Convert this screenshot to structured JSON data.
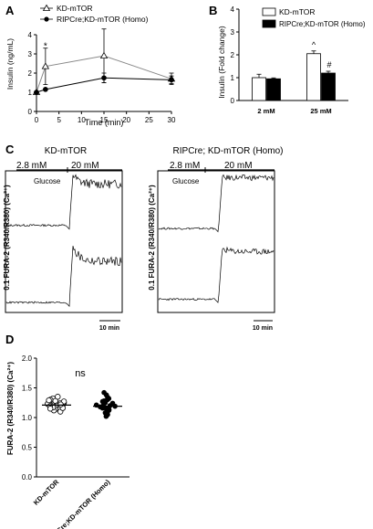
{
  "panels": {
    "A": "A",
    "B": "B",
    "C": "C",
    "D": "D"
  },
  "chart_data": [
    {
      "panel": "A",
      "type": "line",
      "xlabel": "Time (min)",
      "ylabel": "Insulin (ng/mL)",
      "xlim": [
        0,
        30
      ],
      "ylim": [
        0,
        4
      ],
      "xticks": [
        "0",
        "5",
        "10",
        "15",
        "20",
        "25",
        "30"
      ],
      "yticks": [
        "0",
        "1",
        "2",
        "3",
        "4"
      ],
      "series": [
        {
          "name": "KD-mTOR",
          "marker": "open-triangle",
          "x": [
            0,
            2,
            15,
            30
          ],
          "y": [
            1.0,
            2.35,
            2.9,
            1.7
          ],
          "err": [
            0.05,
            0.95,
            1.4,
            0.3
          ]
        },
        {
          "name": "RIPCre;KD-mTOR (Homo)",
          "marker": "filled-circle",
          "x": [
            0,
            2,
            15,
            30
          ],
          "y": [
            1.0,
            1.15,
            1.75,
            1.65
          ],
          "err": [
            0.05,
            0.05,
            0.25,
            0.2
          ]
        }
      ],
      "annotations": [
        {
          "x": 2,
          "y": 3.45,
          "text": "*"
        }
      ]
    },
    {
      "panel": "B",
      "type": "bar",
      "ylabel": "Insulin (Fold change)",
      "categories": [
        "2 mM",
        "25 mM"
      ],
      "ylim": [
        0,
        4
      ],
      "yticks": [
        "0",
        "1",
        "2",
        "3",
        "4"
      ],
      "series": [
        {
          "name": "KD-mTOR",
          "values": [
            1.0,
            2.05
          ],
          "err": [
            0.15,
            0.12
          ],
          "fill": "#ffffff"
        },
        {
          "name": "RIPCre;KD-mTOR (Homo)",
          "values": [
            0.95,
            1.2
          ],
          "err": [
            0.04,
            0.08
          ],
          "fill": "#000000"
        }
      ],
      "annotations": [
        {
          "category": "25 mM",
          "series": "KD-mTOR",
          "text": "^"
        },
        {
          "category": "25 mM",
          "series": "RIPCre;KD-mTOR (Homo)",
          "text": "#"
        }
      ]
    },
    {
      "panel": "C",
      "type": "line",
      "ylabel": "0.1 FURA-2 (R340/R380) (Ca²⁺)",
      "scalebar": "10 min",
      "stimulus_label": "Glucose",
      "conditions": [
        "2.8 mM",
        "20 mM"
      ],
      "traces": [
        {
          "group": "KD-mTOR",
          "trace": 1,
          "baseline": 0.2,
          "peak": 1.0,
          "plateau": 0.85,
          "switch_fraction": 0.43
        },
        {
          "group": "KD-mTOR",
          "trace": 2,
          "baseline": 0.1,
          "peak": 1.0,
          "plateau": 0.75,
          "switch_fraction": 0.43
        },
        {
          "group": "RIPCre; KD-mTOR (Homo)",
          "trace": 1,
          "baseline": 0.15,
          "peak": 0.95,
          "plateau": 0.95,
          "switch_fraction": 0.38
        },
        {
          "group": "RIPCre; KD-mTOR (Homo)",
          "trace": 2,
          "baseline": 0.15,
          "peak": 0.95,
          "plateau": 0.9,
          "switch_fraction": 0.38
        }
      ]
    },
    {
      "panel": "D",
      "type": "scatter",
      "ylabel": "FURA-2 (R340/R380) (Ca²⁺)",
      "categories": [
        "KD-mTOR",
        "RIP-Cre;KD-mTOR (Homo)"
      ],
      "ylim": [
        0,
        2.0
      ],
      "yticks": [
        "0.0",
        "0.5",
        "1.0",
        "1.5",
        "2.0"
      ],
      "annotation": "ns",
      "series": [
        {
          "name": "KD-mTOR",
          "marker": "open-circle",
          "values": [
            1.32,
            1.28,
            1.35,
            1.24,
            1.22,
            1.2,
            1.18,
            1.26,
            1.14,
            1.12,
            1.25,
            1.3,
            1.1,
            1.21,
            1.17,
            1.23,
            1.19,
            1.27,
            1.15,
            1.29,
            1.16,
            1.22
          ],
          "mean": 1.21
        },
        {
          "name": "RIP-Cre;KD-mTOR (Homo)",
          "marker": "filled-circle",
          "values": [
            1.42,
            1.38,
            1.32,
            1.3,
            1.25,
            1.22,
            1.2,
            1.18,
            1.15,
            1.12,
            1.1,
            1.08,
            1.05,
            1.02,
            1.28,
            1.16,
            1.24,
            1.19,
            1.13,
            1.34,
            1.06,
            1.21,
            1.27
          ],
          "mean": 1.19
        }
      ]
    }
  ],
  "panel_c_titles": {
    "left": "KD-mTOR",
    "right": "RIPCre; KD-mTOR (Homo)"
  }
}
